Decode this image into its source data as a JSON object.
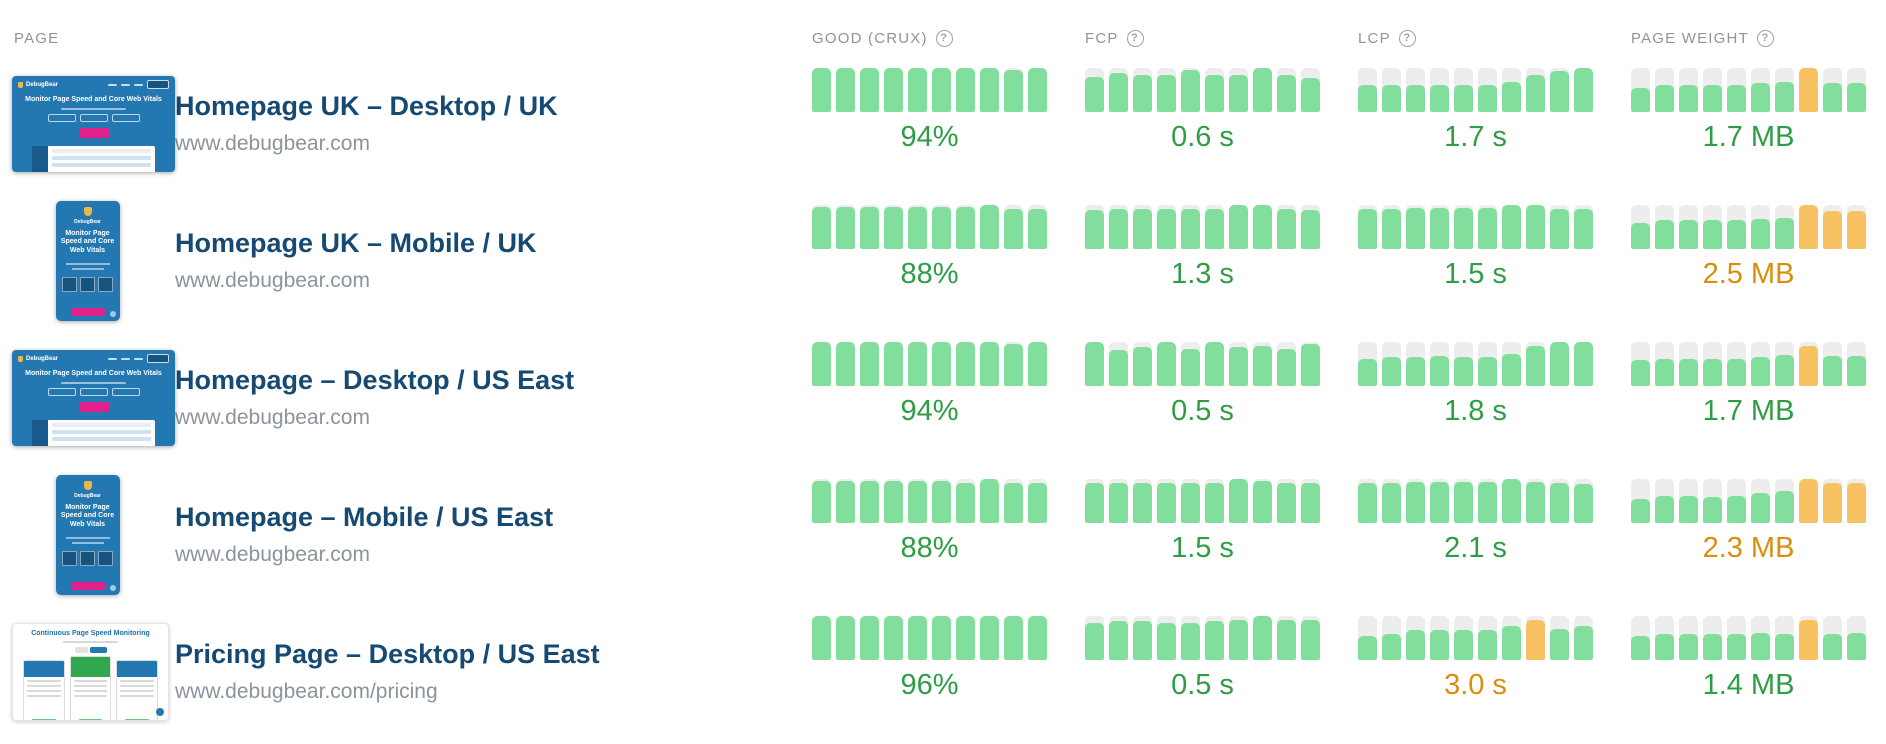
{
  "colors": {
    "bar_green": "#82de9d",
    "bar_orange": "#f8c263",
    "bar_track": "#ededed",
    "text_green": "#2e9d45",
    "text_orange": "#db8e0c",
    "title_blue": "#164a73",
    "muted_gray": "#8c959c"
  },
  "header": {
    "page": "PAGE",
    "good": "GOOD (CRUX)",
    "fcp": "FCP",
    "lcp": "LCP",
    "weight": "PAGE WEIGHT",
    "help_glyph": "?"
  },
  "thumbnails": {
    "desktop": {
      "brand": "DebugBear",
      "headline": "Monitor Page Speed and Core Web Vitals"
    },
    "mobile": {
      "brand": "DebugBear",
      "headline": "Monitor Page Speed and Core Web Vitals"
    },
    "pricing": {
      "headline": "Continuous Page Speed Monitoring"
    }
  },
  "rows": [
    {
      "title": "Homepage UK – Desktop / UK",
      "url": "www.debugbear.com",
      "thumbnail": "desktop",
      "metrics": {
        "good": {
          "value": "94%",
          "color": "green",
          "bars": [
            [
              100,
              "g"
            ],
            [
              100,
              "g"
            ],
            [
              100,
              "g"
            ],
            [
              100,
              "g"
            ],
            [
              100,
              "g"
            ],
            [
              100,
              "g"
            ],
            [
              100,
              "g"
            ],
            [
              100,
              "g"
            ],
            [
              95,
              "g"
            ],
            [
              100,
              "g"
            ]
          ]
        },
        "fcp": {
          "value": "0.6 s",
          "color": "green",
          "bars": [
            [
              80,
              "g"
            ],
            [
              88,
              "g"
            ],
            [
              85,
              "g"
            ],
            [
              85,
              "g"
            ],
            [
              95,
              "g"
            ],
            [
              85,
              "g"
            ],
            [
              85,
              "g"
            ],
            [
              100,
              "g"
            ],
            [
              85,
              "g"
            ],
            [
              78,
              "g"
            ]
          ]
        },
        "lcp": {
          "value": "1.7 s",
          "color": "green",
          "bars": [
            [
              62,
              "g"
            ],
            [
              62,
              "g"
            ],
            [
              62,
              "g"
            ],
            [
              62,
              "g"
            ],
            [
              62,
              "g"
            ],
            [
              62,
              "g"
            ],
            [
              68,
              "g"
            ],
            [
              85,
              "g"
            ],
            [
              93,
              "g"
            ],
            [
              100,
              "g"
            ]
          ]
        },
        "weight": {
          "value": "1.7 MB",
          "color": "green",
          "bars": [
            [
              55,
              "g"
            ],
            [
              62,
              "g"
            ],
            [
              62,
              "g"
            ],
            [
              62,
              "g"
            ],
            [
              62,
              "g"
            ],
            [
              65,
              "g"
            ],
            [
              68,
              "g"
            ],
            [
              100,
              "o"
            ],
            [
              65,
              "g"
            ],
            [
              65,
              "g"
            ]
          ]
        }
      }
    },
    {
      "title": "Homepage UK – Mobile / UK",
      "url": "www.debugbear.com",
      "thumbnail": "mobile",
      "metrics": {
        "good": {
          "value": "88%",
          "color": "green",
          "bars": [
            [
              95,
              "g"
            ],
            [
              95,
              "g"
            ],
            [
              95,
              "g"
            ],
            [
              95,
              "g"
            ],
            [
              95,
              "g"
            ],
            [
              95,
              "g"
            ],
            [
              95,
              "g"
            ],
            [
              100,
              "g"
            ],
            [
              92,
              "g"
            ],
            [
              92,
              "g"
            ]
          ]
        },
        "fcp": {
          "value": "1.3 s",
          "color": "green",
          "bars": [
            [
              88,
              "g"
            ],
            [
              90,
              "g"
            ],
            [
              92,
              "g"
            ],
            [
              90,
              "g"
            ],
            [
              90,
              "g"
            ],
            [
              92,
              "g"
            ],
            [
              100,
              "g"
            ],
            [
              100,
              "g"
            ],
            [
              92,
              "g"
            ],
            [
              88,
              "g"
            ]
          ]
        },
        "lcp": {
          "value": "1.5 s",
          "color": "green",
          "bars": [
            [
              90,
              "g"
            ],
            [
              92,
              "g"
            ],
            [
              93,
              "g"
            ],
            [
              93,
              "g"
            ],
            [
              93,
              "g"
            ],
            [
              93,
              "g"
            ],
            [
              100,
              "g"
            ],
            [
              100,
              "g"
            ],
            [
              90,
              "g"
            ],
            [
              90,
              "g"
            ]
          ]
        },
        "weight": {
          "value": "2.5 MB",
          "color": "orange",
          "bars": [
            [
              60,
              "g"
            ],
            [
              65,
              "g"
            ],
            [
              65,
              "g"
            ],
            [
              66,
              "g"
            ],
            [
              66,
              "g"
            ],
            [
              68,
              "g"
            ],
            [
              70,
              "g"
            ],
            [
              100,
              "o"
            ],
            [
              86,
              "o"
            ],
            [
              86,
              "o"
            ]
          ]
        }
      }
    },
    {
      "title": "Homepage – Desktop / US East",
      "url": "www.debugbear.com",
      "thumbnail": "desktop",
      "metrics": {
        "good": {
          "value": "94%",
          "color": "green",
          "bars": [
            [
              100,
              "g"
            ],
            [
              100,
              "g"
            ],
            [
              100,
              "g"
            ],
            [
              100,
              "g"
            ],
            [
              100,
              "g"
            ],
            [
              100,
              "g"
            ],
            [
              100,
              "g"
            ],
            [
              100,
              "g"
            ],
            [
              96,
              "g"
            ],
            [
              100,
              "g"
            ]
          ]
        },
        "fcp": {
          "value": "0.5 s",
          "color": "green",
          "bars": [
            [
              100,
              "g"
            ],
            [
              82,
              "g"
            ],
            [
              88,
              "g"
            ],
            [
              100,
              "g"
            ],
            [
              84,
              "g"
            ],
            [
              100,
              "g"
            ],
            [
              88,
              "g"
            ],
            [
              90,
              "g"
            ],
            [
              84,
              "g"
            ],
            [
              96,
              "g"
            ]
          ]
        },
        "lcp": {
          "value": "1.8 s",
          "color": "green",
          "bars": [
            [
              62,
              "g"
            ],
            [
              65,
              "g"
            ],
            [
              65,
              "g"
            ],
            [
              68,
              "g"
            ],
            [
              66,
              "g"
            ],
            [
              66,
              "g"
            ],
            [
              72,
              "g"
            ],
            [
              92,
              "g"
            ],
            [
              100,
              "g"
            ],
            [
              100,
              "g"
            ]
          ]
        },
        "weight": {
          "value": "1.7 MB",
          "color": "green",
          "bars": [
            [
              58,
              "g"
            ],
            [
              62,
              "g"
            ],
            [
              62,
              "g"
            ],
            [
              62,
              "g"
            ],
            [
              62,
              "g"
            ],
            [
              66,
              "g"
            ],
            [
              70,
              "g"
            ],
            [
              92,
              "o"
            ],
            [
              68,
              "g"
            ],
            [
              68,
              "g"
            ]
          ]
        }
      }
    },
    {
      "title": "Homepage – Mobile / US East",
      "url": "www.debugbear.com",
      "thumbnail": "mobile",
      "metrics": {
        "good": {
          "value": "88%",
          "color": "green",
          "bars": [
            [
              95,
              "g"
            ],
            [
              95,
              "g"
            ],
            [
              95,
              "g"
            ],
            [
              95,
              "g"
            ],
            [
              95,
              "g"
            ],
            [
              95,
              "g"
            ],
            [
              92,
              "g"
            ],
            [
              100,
              "g"
            ],
            [
              92,
              "g"
            ],
            [
              90,
              "g"
            ]
          ]
        },
        "fcp": {
          "value": "1.5 s",
          "color": "green",
          "bars": [
            [
              90,
              "g"
            ],
            [
              92,
              "g"
            ],
            [
              92,
              "g"
            ],
            [
              90,
              "g"
            ],
            [
              92,
              "g"
            ],
            [
              92,
              "g"
            ],
            [
              100,
              "g"
            ],
            [
              95,
              "g"
            ],
            [
              90,
              "g"
            ],
            [
              90,
              "g"
            ]
          ]
        },
        "lcp": {
          "value": "2.1 s",
          "color": "green",
          "bars": [
            [
              92,
              "g"
            ],
            [
              90,
              "g"
            ],
            [
              93,
              "g"
            ],
            [
              93,
              "g"
            ],
            [
              93,
              "g"
            ],
            [
              93,
              "g"
            ],
            [
              100,
              "g"
            ],
            [
              93,
              "g"
            ],
            [
              90,
              "g"
            ],
            [
              88,
              "g"
            ]
          ]
        },
        "weight": {
          "value": "2.3 MB",
          "color": "orange",
          "bars": [
            [
              55,
              "g"
            ],
            [
              62,
              "g"
            ],
            [
              62,
              "g"
            ],
            [
              60,
              "g"
            ],
            [
              62,
              "g"
            ],
            [
              68,
              "g"
            ],
            [
              72,
              "g"
            ],
            [
              100,
              "o"
            ],
            [
              92,
              "o"
            ],
            [
              92,
              "o"
            ]
          ]
        }
      }
    },
    {
      "title": "Pricing Page – Desktop / US East",
      "url": "www.debugbear.com/pricing",
      "thumbnail": "pricing",
      "metrics": {
        "good": {
          "value": "96%",
          "color": "green",
          "bars": [
            [
              100,
              "g"
            ],
            [
              100,
              "g"
            ],
            [
              100,
              "g"
            ],
            [
              100,
              "g"
            ],
            [
              100,
              "g"
            ],
            [
              100,
              "g"
            ],
            [
              100,
              "g"
            ],
            [
              100,
              "g"
            ],
            [
              100,
              "g"
            ],
            [
              100,
              "g"
            ]
          ]
        },
        "fcp": {
          "value": "0.5 s",
          "color": "green",
          "bars": [
            [
              85,
              "g"
            ],
            [
              88,
              "g"
            ],
            [
              88,
              "g"
            ],
            [
              85,
              "g"
            ],
            [
              85,
              "g"
            ],
            [
              88,
              "g"
            ],
            [
              92,
              "g"
            ],
            [
              100,
              "g"
            ],
            [
              90,
              "g"
            ],
            [
              92,
              "g"
            ]
          ]
        },
        "lcp": {
          "value": "3.0 s",
          "color": "orange",
          "bars": [
            [
              55,
              "g"
            ],
            [
              60,
              "g"
            ],
            [
              68,
              "g"
            ],
            [
              68,
              "g"
            ],
            [
              68,
              "g"
            ],
            [
              68,
              "g"
            ],
            [
              78,
              "g"
            ],
            [
              92,
              "o"
            ],
            [
              70,
              "g"
            ],
            [
              78,
              "g"
            ]
          ]
        },
        "weight": {
          "value": "1.4 MB",
          "color": "green",
          "bars": [
            [
              55,
              "g"
            ],
            [
              60,
              "g"
            ],
            [
              60,
              "g"
            ],
            [
              60,
              "g"
            ],
            [
              58,
              "g"
            ],
            [
              62,
              "g"
            ],
            [
              60,
              "g"
            ],
            [
              92,
              "o"
            ],
            [
              58,
              "g"
            ],
            [
              62,
              "g"
            ]
          ]
        }
      }
    }
  ]
}
